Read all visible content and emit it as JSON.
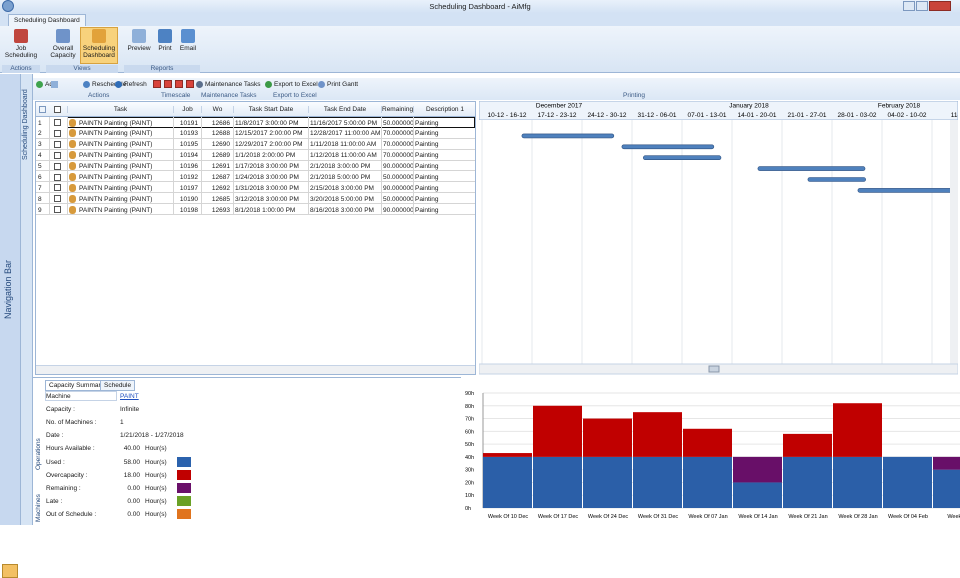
{
  "window": {
    "title": "Scheduling Dashboard - AiMfg",
    "tab": "Scheduling Dashboard"
  },
  "ribbon": {
    "groups": [
      {
        "label": "Actions",
        "buttons": [
          "Job Scheduling"
        ]
      },
      {
        "label": "Views",
        "buttons": [
          "Overall Capacity",
          "Scheduling Dashboard"
        ]
      },
      {
        "label": "Reports",
        "buttons": [
          "Preview",
          "Print",
          "Email"
        ]
      }
    ]
  },
  "sidebar": {
    "navigation": "Navigation Bar",
    "panel": "Scheduling Dashboard",
    "operations": "Operations",
    "machines": "Machines"
  },
  "toolbar": {
    "buttons": [
      "Add",
      "Reschedule",
      "Refresh",
      "Maintenance Tasks",
      "Export to Excel",
      "Print Gantt"
    ],
    "groups": [
      "Actions",
      "Timescale",
      "Maintenance Tasks",
      "Export to Excel",
      "Printing"
    ]
  },
  "table": {
    "columns": [
      "Task",
      "Job",
      "Wo",
      "Task Start Date",
      "Task End Date",
      "Remaining",
      "Description 1"
    ],
    "rows": [
      [
        "1",
        "PAINTN Painting (PAINT)",
        "10191",
        "12686",
        "11/8/2017 3:00:00 PM",
        "11/16/2017 5:00:00 PM",
        "50.000000",
        "Painting"
      ],
      [
        "2",
        "PAINTN Painting (PAINT)",
        "10193",
        "12688",
        "12/15/2017 2:00:00 PM",
        "12/28/2017 11:00:00 AM",
        "70.000000",
        "Painting"
      ],
      [
        "3",
        "PAINTN Painting (PAINT)",
        "10195",
        "12690",
        "12/29/2017 2:00:00 PM",
        "1/11/2018 11:00:00 AM",
        "70.000000",
        "Painting"
      ],
      [
        "4",
        "PAINTN Painting (PAINT)",
        "10194",
        "12689",
        "1/1/2018 2:00:00 PM",
        "1/12/2018 11:00:00 AM",
        "70.000000",
        "Painting"
      ],
      [
        "5",
        "PAINTN Painting (PAINT)",
        "10196",
        "12691",
        "1/17/2018 3:00:00 PM",
        "2/1/2018 3:00:00 PM",
        "90.000000",
        "Painting"
      ],
      [
        "6",
        "PAINTN Painting (PAINT)",
        "10192",
        "12687",
        "1/24/2018 3:00:00 PM",
        "2/1/2018 5:00:00 PM",
        "50.000000",
        "Painting"
      ],
      [
        "7",
        "PAINTN Painting (PAINT)",
        "10197",
        "12692",
        "1/31/2018 3:00:00 PM",
        "2/15/2018 3:00:00 PM",
        "90.000000",
        "Painting"
      ],
      [
        "8",
        "PAINTN Painting (PAINT)",
        "10190",
        "12685",
        "3/12/2018 3:00:00 PM",
        "3/20/2018 5:00:00 PM",
        "50.000000",
        "Painting"
      ],
      [
        "9",
        "PAINTN Painting (PAINT)",
        "10198",
        "12693",
        "8/1/2018 1:00:00 PM",
        "8/16/2018 3:00:00 PM",
        "90.000000",
        "Painting"
      ]
    ]
  },
  "gantt": {
    "months": [
      "December 2017",
      "January 2018",
      "February 2018"
    ],
    "weeks": [
      "10-12 - 16-12",
      "17-12 - 23-12",
      "24-12 - 30-12",
      "31-12 - 06-01",
      "07-01 - 13-01",
      "14-01 - 20-01",
      "21-01 - 27-01",
      "28-01 - 03-02",
      "04-02 - 10-02",
      "11-0"
    ]
  },
  "capacity": {
    "tabs": [
      "Capacity Summary",
      "Schedule"
    ],
    "fields": [
      [
        "Machine",
        "PAINT"
      ],
      [
        "Capacity :",
        "Infinite"
      ],
      [
        "No. of Machines :",
        "1"
      ],
      [
        "Date :",
        "1/21/2018 - 1/27/2018"
      ],
      [
        "Hours Available :",
        "40.00",
        "Hour(s)"
      ],
      [
        "Used :",
        "58.00",
        "Hour(s)"
      ],
      [
        "Overcapacity :",
        "18.00",
        "Hour(s)"
      ],
      [
        "Remaining :",
        "0.00",
        "Hour(s)"
      ],
      [
        "Late :",
        "0.00",
        "Hour(s)"
      ],
      [
        "Out of Schedule :",
        "0.00",
        "Hour(s)"
      ]
    ],
    "swatches": [
      "#2b62ad",
      "#c00000",
      "#6a106a",
      "#6aa126",
      "#e0741e"
    ]
  },
  "chart_data": {
    "type": "bar",
    "stacked": true,
    "grid": true,
    "categories": [
      "Week Of 10 Dec",
      "Week Of 17 Dec",
      "Week Of 24 Dec",
      "Week Of 31 Dec",
      "Week Of 07 Jan",
      "Week Of 14 Jan",
      "Week Of 21 Jan",
      "Week Of 28 Jan",
      "Week Of 04 Feb",
      "Week Of"
    ],
    "series": [
      {
        "color": "#2b5fa8",
        "values": [
          40,
          40,
          40,
          40,
          40,
          20,
          40,
          40,
          40,
          30
        ]
      },
      {
        "color": "#c00000",
        "values": [
          3,
          40,
          30,
          35,
          22,
          0,
          18,
          42,
          0,
          0
        ]
      },
      {
        "color": "#680f68",
        "values": [
          0,
          0,
          0,
          0,
          0,
          20,
          0,
          0,
          0,
          10
        ]
      }
    ],
    "ylim": [
      0,
      90
    ],
    "yticks": [
      {
        "value": 0,
        "label": "0h"
      },
      {
        "value": 10,
        "label": "10h"
      },
      {
        "value": 20,
        "label": "20h"
      },
      {
        "value": 30,
        "label": "30h"
      },
      {
        "value": 40,
        "label": "40h"
      },
      {
        "value": 50,
        "label": "50h"
      },
      {
        "value": 60,
        "label": "60h"
      },
      {
        "value": 70,
        "label": "70h"
      },
      {
        "value": 80,
        "label": "80h"
      },
      {
        "value": 90,
        "label": "90h"
      }
    ]
  }
}
